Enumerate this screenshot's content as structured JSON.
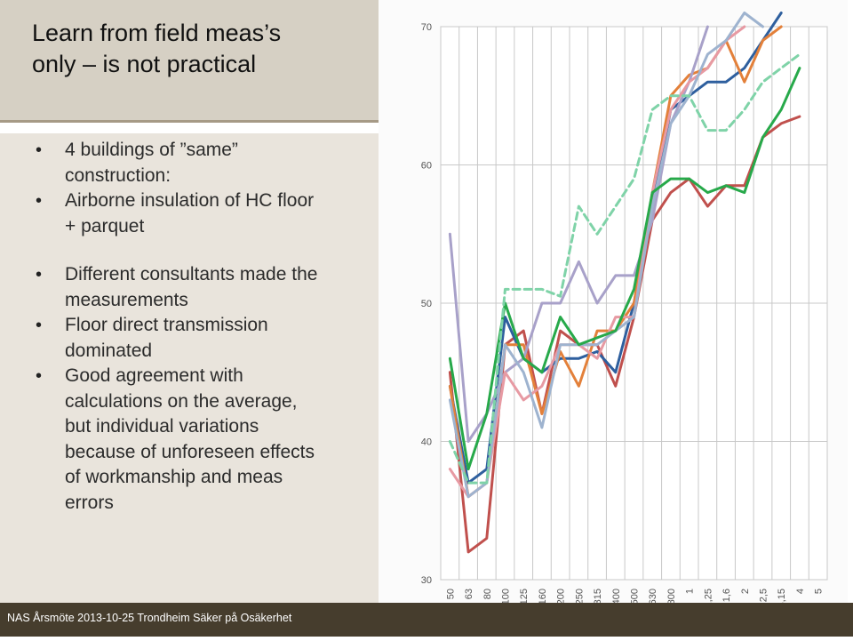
{
  "slide": {
    "title_lines": [
      "Learn from field meas’s",
      "only – is not practical"
    ],
    "bullets": [
      "4 buildings of ”same” construction:",
      "Airborne insulation of HC floor + parquet",
      "Different consultants made the measurements",
      "Floor direct transmission dominated",
      "Good agreement with calculations on the average, but individual variations because of unforeseen effects of workmanship and meas errors"
    ],
    "footer": "NAS Årsmöte 2013-10-25 Trondheim Säker på Osäkerhet"
  },
  "chart_data": {
    "type": "line",
    "categories": [
      "50",
      "63",
      "80",
      "100",
      "125",
      "160",
      "200",
      "250",
      "315",
      "400",
      "500",
      "630",
      "800",
      "1",
      "1,25",
      "1,6",
      "2",
      "2,5",
      "3,15",
      "4",
      "5"
    ],
    "yticks": [
      30,
      40,
      50,
      60,
      70
    ],
    "ylim": [
      30,
      70
    ],
    "grid": true,
    "legend": "none",
    "series": [
      {
        "color": "#c0504d",
        "dash": "",
        "values": [
          45,
          32,
          33,
          47,
          48,
          42,
          48,
          47,
          47,
          44,
          49,
          56,
          58,
          59,
          57,
          58.5,
          58.5,
          62,
          63,
          63.5,
          null
        ]
      },
      {
        "color": "#2e5f9e",
        "dash": "",
        "values": [
          44,
          37,
          38,
          49,
          46,
          45,
          46,
          46,
          46.5,
          45,
          50,
          57,
          64,
          65,
          66,
          66,
          67,
          69,
          71,
          null,
          null
        ]
      },
      {
        "color": "#e3803a",
        "dash": "",
        "values": [
          44,
          36,
          37,
          47,
          47,
          42,
          46.5,
          44,
          48,
          48,
          50,
          58,
          65,
          66.5,
          67,
          69,
          66,
          69,
          70,
          null,
          null
        ]
      },
      {
        "color": "#a8a1c9",
        "dash": "",
        "values": [
          55,
          40,
          42,
          45,
          46,
          50,
          50,
          53,
          50,
          52,
          52,
          56,
          63,
          66,
          70,
          null,
          null,
          null,
          null,
          null,
          null
        ]
      },
      {
        "color": "#e79aa3",
        "dash": "",
        "values": [
          38,
          36,
          37,
          45,
          43,
          44,
          47,
          47,
          46,
          49,
          49,
          58,
          64,
          66,
          67,
          69,
          70,
          null,
          null,
          null,
          null
        ]
      },
      {
        "color": "#9eb3cf",
        "dash": "",
        "values": [
          43,
          36,
          37,
          47,
          45,
          41,
          47,
          47,
          47,
          48,
          49,
          57,
          63,
          65,
          68,
          69,
          71,
          70,
          null,
          null,
          null
        ]
      },
      {
        "color": "#27a94a",
        "dash": "",
        "values": [
          46,
          38,
          42,
          50,
          46,
          45,
          49,
          47,
          47.5,
          48,
          51,
          58,
          59,
          59,
          58,
          58.5,
          58,
          62,
          64,
          67,
          null
        ]
      },
      {
        "color": "#7fd3a8",
        "dash": "8 5",
        "values": [
          40,
          37,
          37,
          51,
          51,
          51,
          50.5,
          57,
          55,
          57,
          59,
          64,
          65,
          65,
          62.5,
          62.5,
          64,
          66,
          67,
          68,
          null
        ]
      }
    ]
  }
}
